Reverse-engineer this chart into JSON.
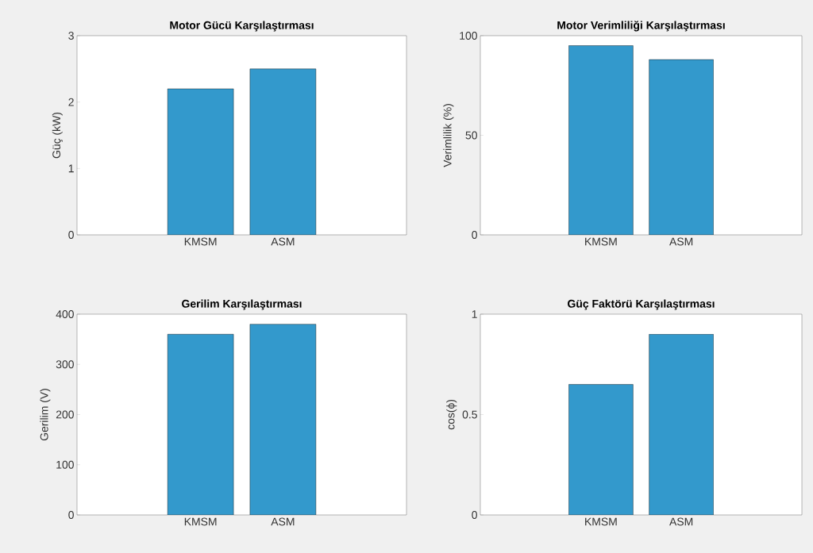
{
  "chart_data": [
    {
      "type": "bar",
      "title": "Motor Gücü Karşılaştırması",
      "ylabel": "Güç (kW)",
      "categories": [
        "KMSM",
        "ASM"
      ],
      "values": [
        2.2,
        2.5
      ],
      "color": "#3399cc",
      "ylim": [
        0,
        3
      ],
      "yticks": [
        0,
        1,
        2,
        3
      ]
    },
    {
      "type": "bar",
      "title": "Motor Verimliliği Karşılaştırması",
      "ylabel": "Verimlilik (%)",
      "categories": [
        "KMSM",
        "ASM"
      ],
      "values": [
        95,
        88
      ],
      "color": "#3399cc",
      "ylim": [
        0,
        100
      ],
      "yticks": [
        0,
        50,
        100
      ]
    },
    {
      "type": "bar",
      "title": "Gerilim Karşılaştırması",
      "ylabel": "Gerilim (V)",
      "categories": [
        "KMSM",
        "ASM"
      ],
      "values": [
        360,
        380
      ],
      "color": "#3399cc",
      "ylim": [
        0,
        400
      ],
      "yticks": [
        0,
        100,
        200,
        300,
        400
      ]
    },
    {
      "type": "bar",
      "title": "Güç Faktörü Karşılaştırması",
      "ylabel": "cos(ϕ)",
      "categories": [
        "KMSM",
        "ASM"
      ],
      "values": [
        0.65,
        0.9
      ],
      "color": "#3399cc",
      "ylim": [
        0,
        1
      ],
      "yticks": [
        0,
        0.5,
        1
      ]
    }
  ]
}
